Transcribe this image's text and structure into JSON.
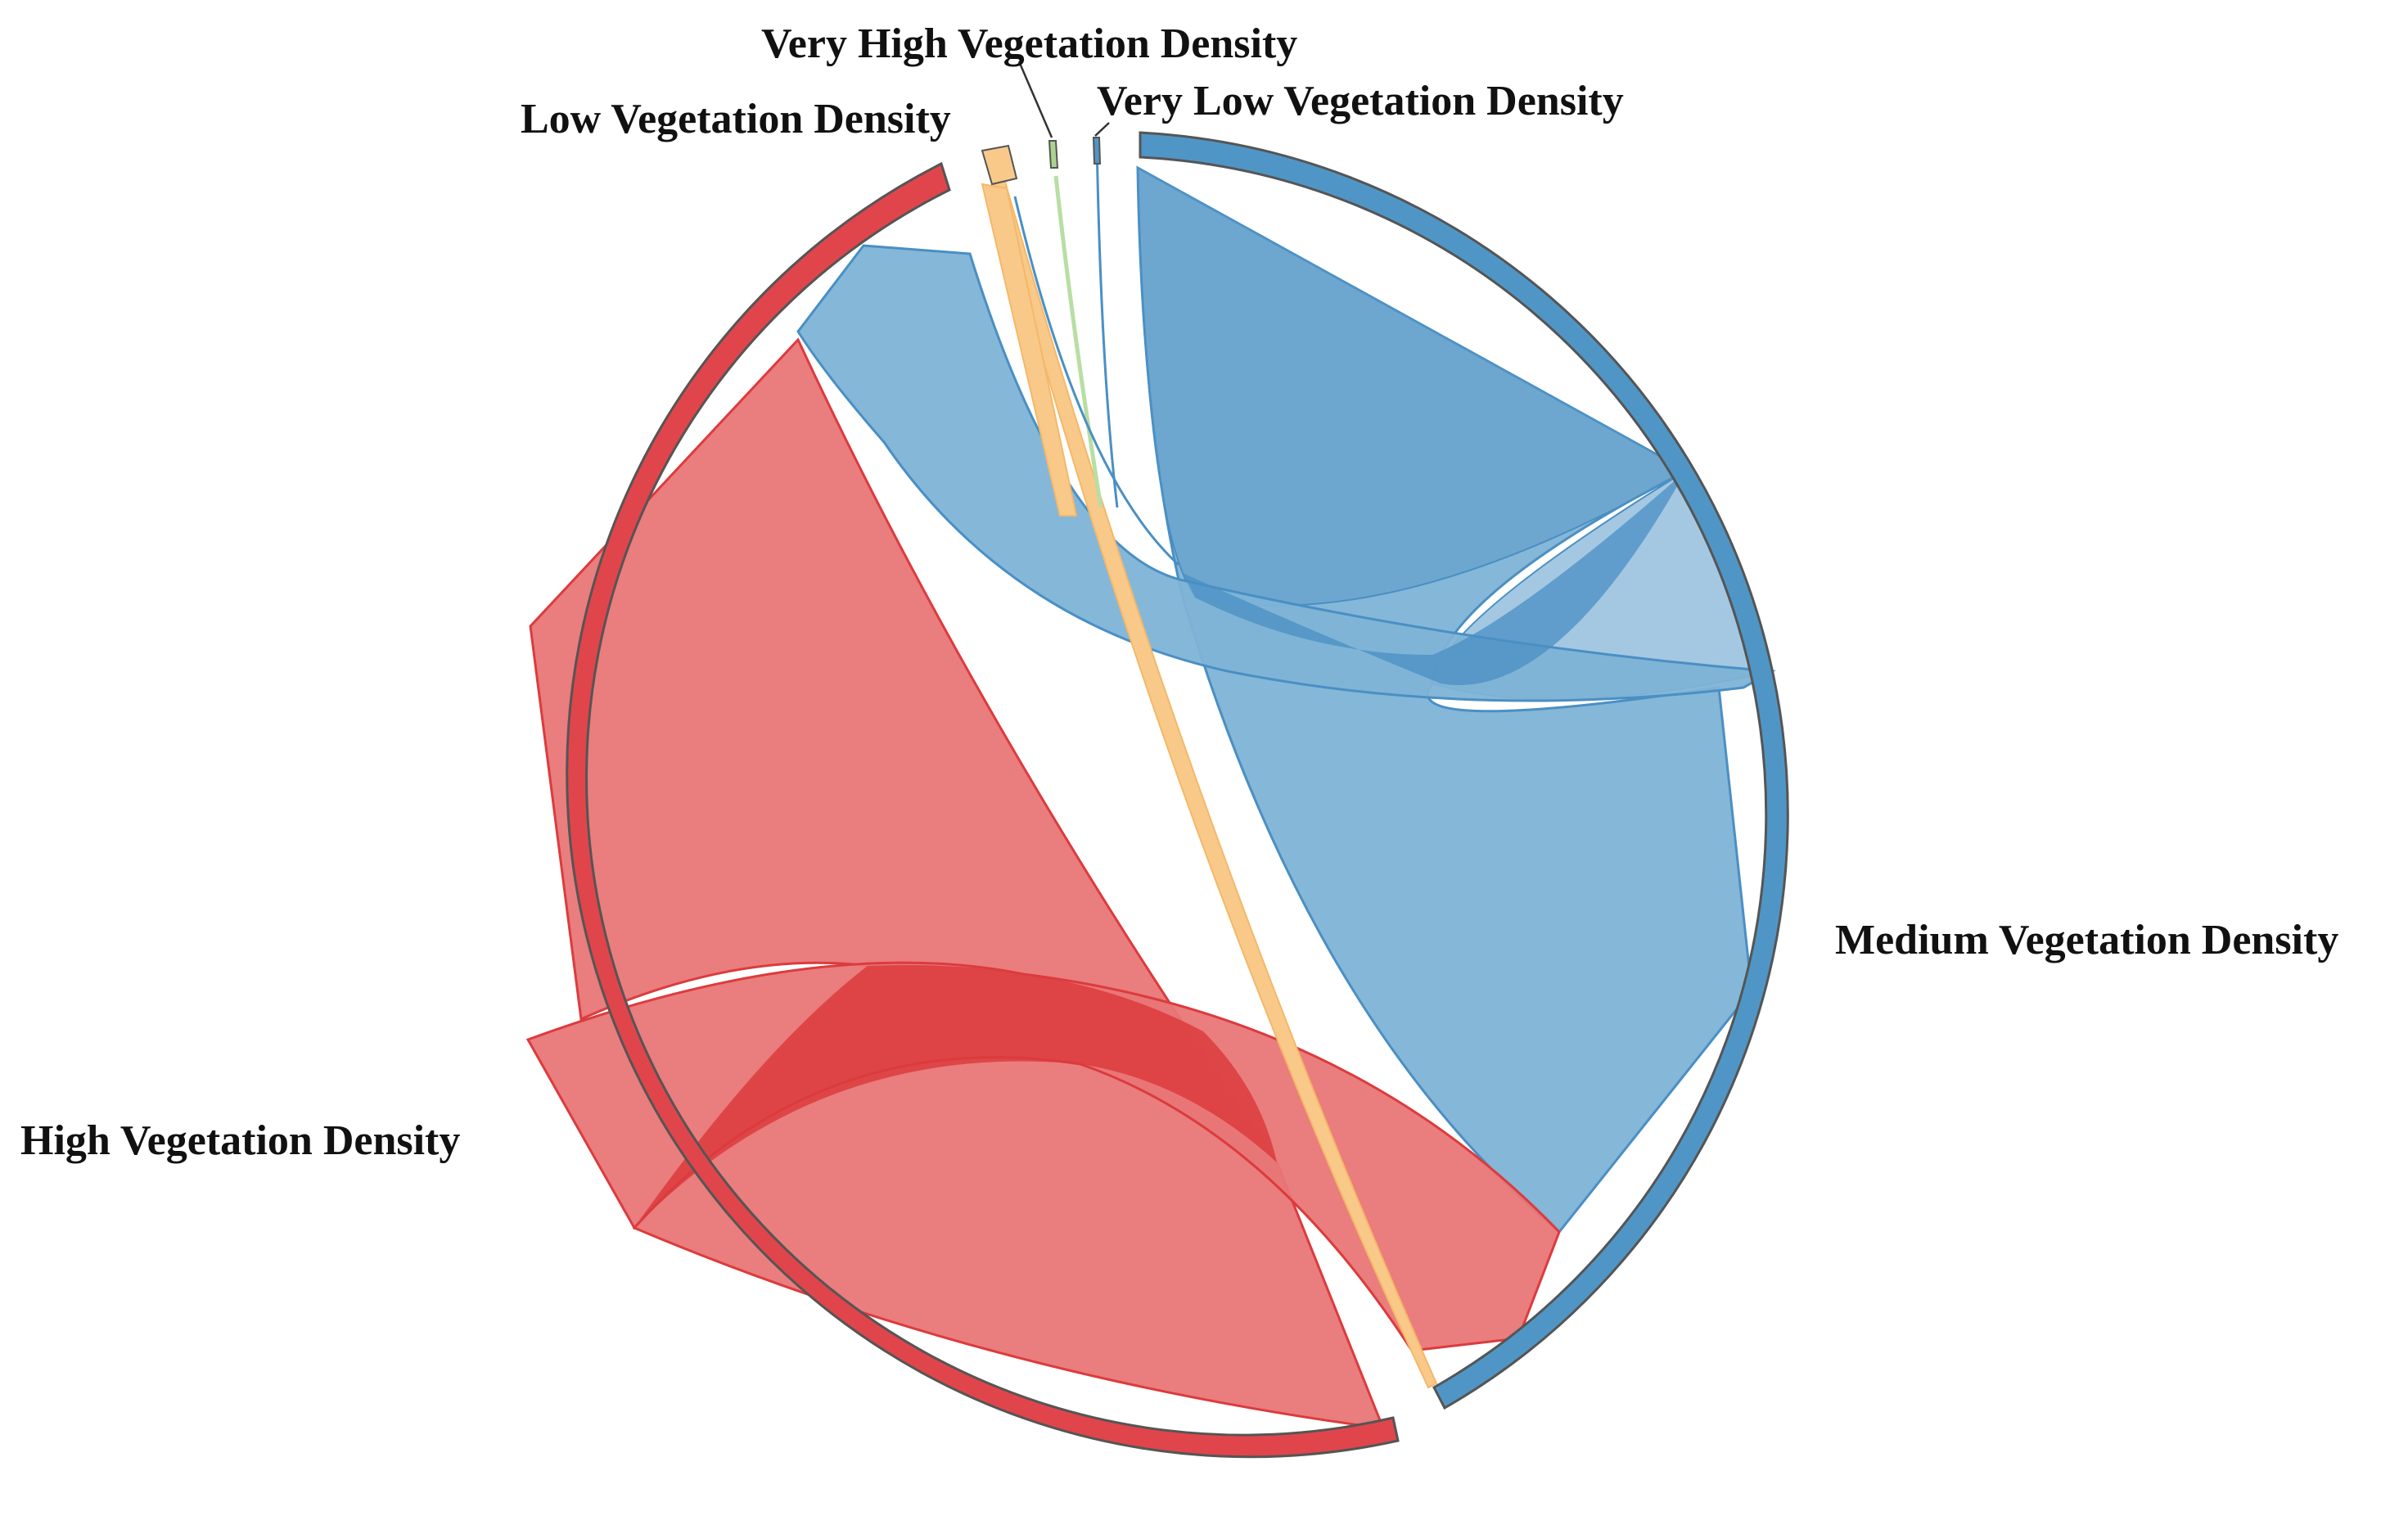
{
  "chart_data": {
    "type": "chord",
    "categories": [
      "Medium Vegetation Density",
      "High Vegetation Density",
      "Low Vegetation Density",
      "Very High Vegetation Density",
      "Very Low Vegetation Density"
    ],
    "colors": {
      "Medium Vegetation Density": "#4f96c6",
      "High Vegetation Density": "#e0454b",
      "Low Vegetation Density": "#f9c98a",
      "Very High Vegetation Density": "#a9d58f",
      "Very Low Vegetation Density": "#4f96c6"
    },
    "ribbon_colors": {
      "blue": "#7eb3d6",
      "blue_dark": "#4a8fc4",
      "red": "#e97677",
      "red_dark": "#dc3b3d",
      "orange": "#f9c98a",
      "green": "#b9dea4"
    }
  }
}
